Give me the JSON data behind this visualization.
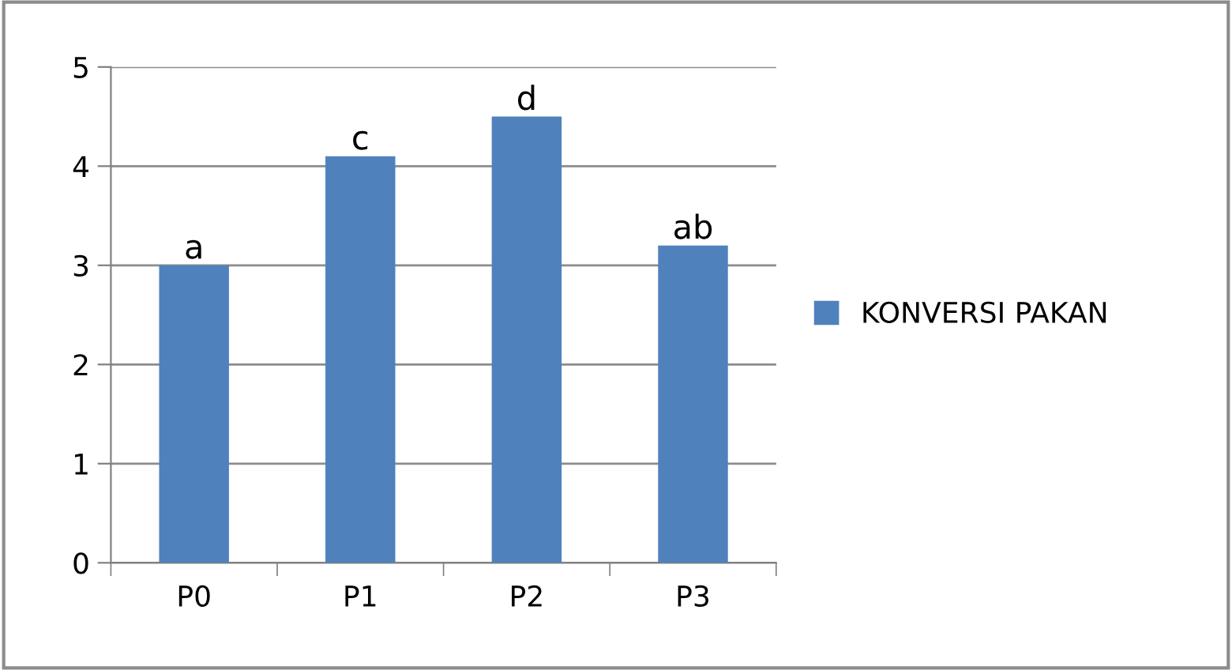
{
  "chart_data": {
    "type": "bar",
    "categories": [
      "P0",
      "P1",
      "P2",
      "P3"
    ],
    "series": [
      {
        "name": "KONVERSI PAKAN",
        "color": "#4f81bd",
        "values": [
          3.0,
          4.1,
          4.5,
          3.2
        ],
        "value_labels": [
          "a",
          "c",
          "d",
          "ab"
        ]
      }
    ],
    "ylim": [
      0,
      5
    ],
    "yticks": [
      0,
      1,
      2,
      3,
      4,
      5
    ],
    "grid": "y",
    "legend": "right"
  }
}
